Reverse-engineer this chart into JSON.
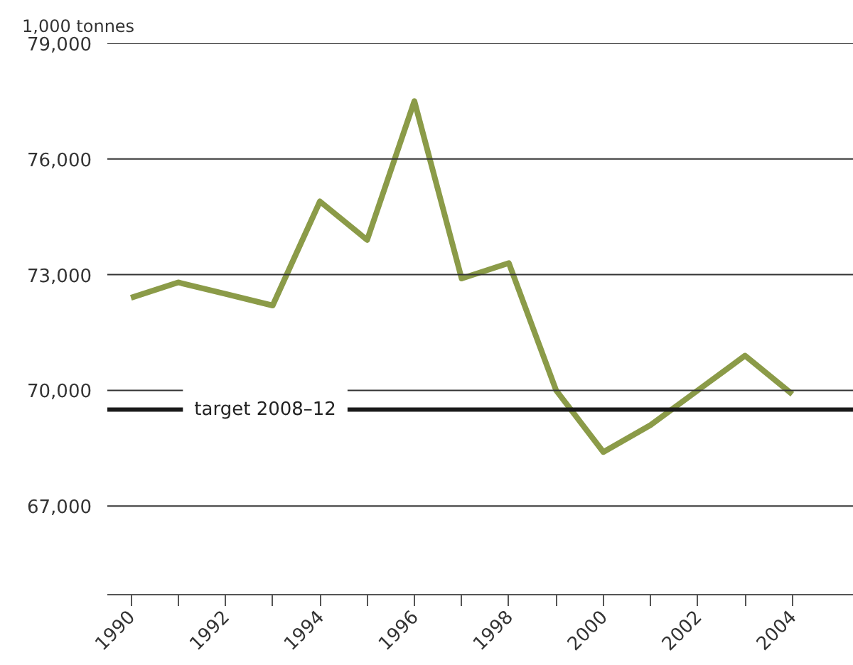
{
  "chart_data": {
    "type": "line",
    "ylabel": "1,000 tonnes",
    "x": [
      1990,
      1991,
      1992,
      1993,
      1994,
      1995,
      1996,
      1997,
      1998,
      1999,
      2000,
      2001,
      2002,
      2003,
      2004
    ],
    "series": [
      {
        "color": "#8b9b48",
        "values": [
          72400,
          72800,
          72500,
          72200,
          74900,
          73900,
          77500,
          72900,
          73300,
          70000,
          68400,
          69100,
          70000,
          70900,
          69900
        ]
      }
    ],
    "xlim": [
      1989.5,
      2005.3
    ],
    "ylim": [
      64700,
      79000
    ],
    "xticks": [
      1990,
      {
        "value": 1991,
        "label": null
      },
      1992,
      {
        "value": 1993,
        "label": null
      },
      1994,
      {
        "value": 1995,
        "label": null
      },
      1996,
      {
        "value": 1997,
        "label": null
      },
      1998,
      {
        "value": 1999,
        "label": null
      },
      2000,
      {
        "value": 2001,
        "label": null
      },
      2002,
      {
        "value": 2003,
        "label": null
      },
      2004
    ],
    "yticks": [
      {
        "value": 67000,
        "label": "67,000"
      },
      {
        "value": 70000,
        "label": "70,000"
      },
      {
        "value": 73000,
        "label": "73,000"
      },
      {
        "value": 76000,
        "label": "76,000"
      },
      {
        "value": 79000,
        "label": "79,000"
      }
    ],
    "ref_lines": [
      {
        "axis": "y",
        "value": 69500,
        "label": "target 2008–12",
        "color": "#1a1a1a"
      }
    ],
    "grid": "y",
    "line_style": "solid",
    "marker": "none"
  }
}
